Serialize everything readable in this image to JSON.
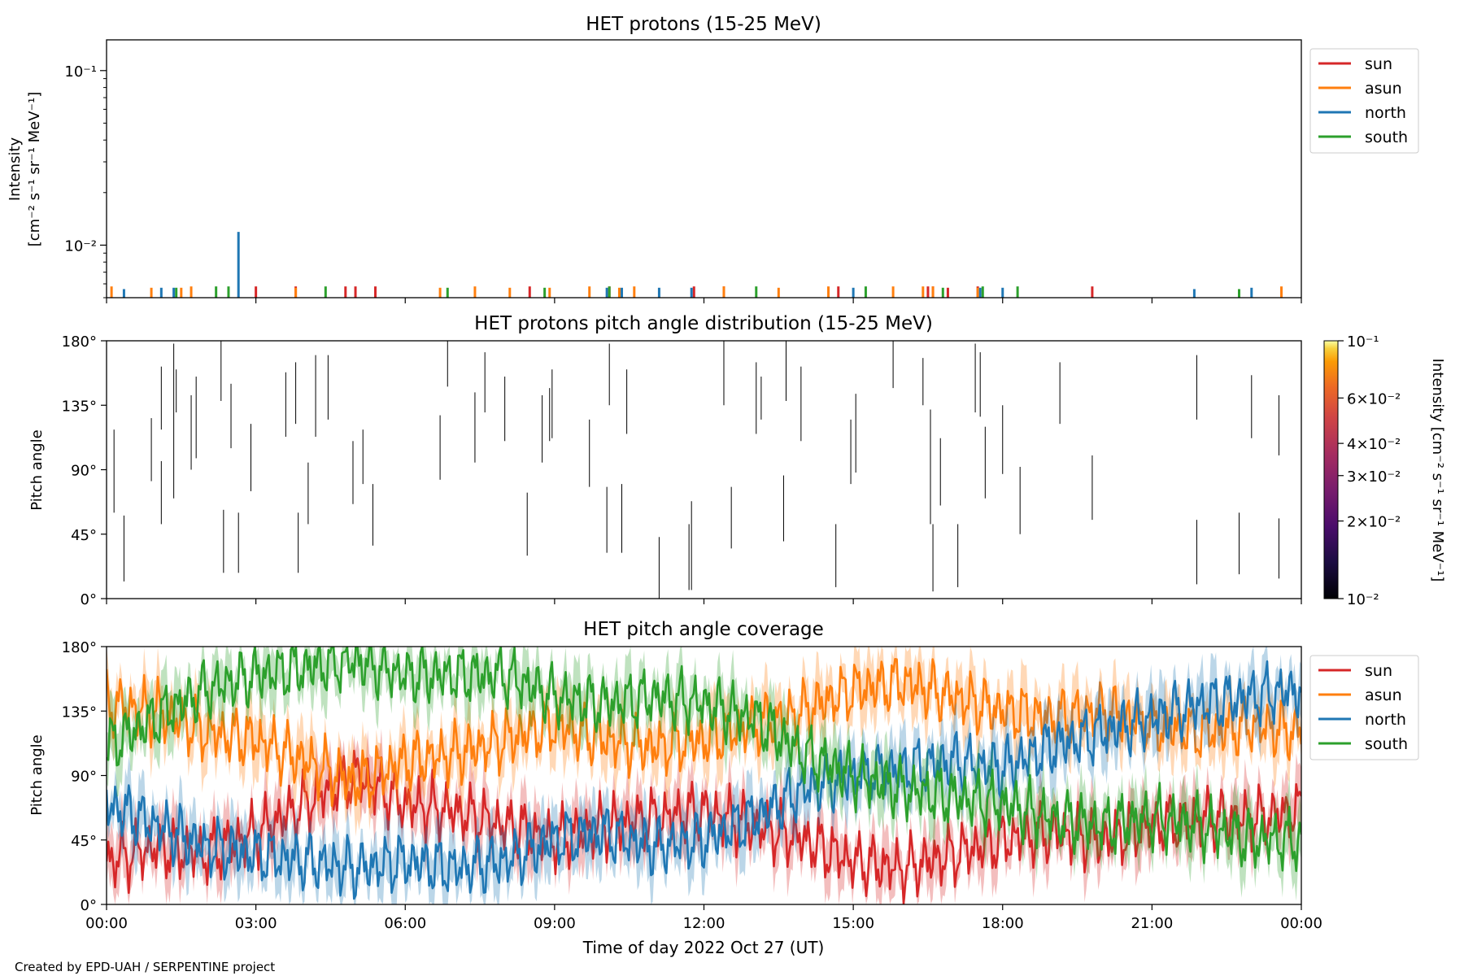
{
  "footer": "Created by EPD-UAH / SERPENTINE project",
  "colors": {
    "sun": "#d62728",
    "asun": "#ff7f0e",
    "north": "#1f77b4",
    "south": "#2ca02c"
  },
  "time_ticks": [
    "00:00",
    "03:00",
    "06:00",
    "09:00",
    "12:00",
    "15:00",
    "18:00",
    "21:00",
    "00:00"
  ],
  "xlabel": "Time of day 2022 Oct 27 (UT)",
  "chart_data": [
    {
      "type": "bar",
      "title": "HET protons (15-25 MeV)",
      "ylabel_line1": "Intensity",
      "ylabel_line2": "[cm⁻² s⁻¹ sr⁻¹ MeV⁻¹]",
      "yscale": "log",
      "ylim": [
        0.005,
        0.15
      ],
      "ytick_labels": [
        "10⁻¹",
        "10⁻²"
      ],
      "xlim_hours": [
        0,
        24
      ],
      "legend_position": "right-outside-top",
      "series": [
        {
          "name": "sun",
          "color_key": "sun",
          "t": [
            3.0,
            3.8,
            4.8,
            5.0,
            5.4,
            8.5,
            10.1,
            11.8,
            12.4,
            14.7,
            16.5,
            16.6,
            16.9,
            17.5,
            19.8
          ],
          "values": [
            0.0058,
            0.0058,
            0.0058,
            0.0058,
            0.0058,
            0.0058,
            0.0058,
            0.0058,
            0.0058,
            0.0058,
            0.0058,
            0.0058,
            0.0057,
            0.0058,
            0.0058
          ]
        },
        {
          "name": "asun",
          "color_key": "asun",
          "t": [
            0.1,
            0.9,
            1.5,
            1.7,
            3.8,
            6.7,
            7.4,
            8.1,
            8.9,
            9.7,
            10.3,
            10.6,
            12.4,
            13.5,
            14.5,
            15.8,
            16.4,
            16.6,
            17.5,
            23.6
          ],
          "values": [
            0.0058,
            0.0057,
            0.0057,
            0.0058,
            0.0057,
            0.0057,
            0.0058,
            0.0057,
            0.0057,
            0.0058,
            0.0057,
            0.0058,
            0.0058,
            0.0057,
            0.0058,
            0.0058,
            0.0058,
            0.0058,
            0.0057,
            0.0058
          ]
        },
        {
          "name": "north",
          "color_key": "north",
          "t": [
            0.35,
            1.1,
            1.35,
            2.65,
            10.05,
            10.35,
            11.1,
            11.75,
            15.0,
            17.55,
            18.0,
            21.85,
            23.0
          ],
          "values": [
            0.0056,
            0.0057,
            0.0057,
            0.0119,
            0.0057,
            0.0057,
            0.0057,
            0.0057,
            0.0057,
            0.0057,
            0.0057,
            0.0056,
            0.0057
          ]
        },
        {
          "name": "south",
          "color_key": "south",
          "t": [
            1.4,
            2.2,
            2.45,
            4.4,
            6.85,
            8.8,
            10.1,
            13.05,
            15.25,
            16.8,
            17.6,
            18.3,
            22.75
          ],
          "values": [
            0.0057,
            0.0058,
            0.0058,
            0.0058,
            0.0057,
            0.0057,
            0.0058,
            0.0058,
            0.0058,
            0.0057,
            0.0058,
            0.0058,
            0.0056
          ]
        }
      ]
    },
    {
      "type": "scatter",
      "title": "HET protons pitch angle distribution (15-25 MeV)",
      "ylabel": "Pitch angle",
      "ylim": [
        0,
        180
      ],
      "ytick_labels": [
        "0°",
        "45°",
        "90°",
        "135°",
        "180°"
      ],
      "ytick_values": [
        0,
        45,
        90,
        135,
        180
      ],
      "xlim_hours": [
        0,
        24
      ],
      "colorbar": {
        "label": "Intensity [cm⁻² s⁻¹ sr⁻¹ MeV⁻¹]",
        "scale": "log",
        "range": [
          0.01,
          0.1
        ],
        "tick_labels": [
          "10⁻¹",
          "6×10⁻²",
          "4×10⁻²",
          "3×10⁻²",
          "2×10⁻²",
          "10⁻²"
        ],
        "tick_values": [
          0.1,
          0.06,
          0.04,
          0.03,
          0.02,
          0.01
        ],
        "colormap": "inferno"
      },
      "segments": [
        [
          0.15,
          60,
          118
        ],
        [
          0.35,
          12,
          58
        ],
        [
          0.9,
          82,
          126
        ],
        [
          1.1,
          52,
          96
        ],
        [
          1.1,
          118,
          162
        ],
        [
          1.35,
          70,
          178
        ],
        [
          1.4,
          130,
          160
        ],
        [
          1.7,
          90,
          142
        ],
        [
          1.8,
          98,
          155
        ],
        [
          2.3,
          138,
          180
        ],
        [
          2.35,
          18,
          62
        ],
        [
          2.5,
          105,
          150
        ],
        [
          2.65,
          18,
          60
        ],
        [
          2.9,
          75,
          122
        ],
        [
          3.6,
          113,
          158
        ],
        [
          3.85,
          18,
          60
        ],
        [
          3.8,
          122,
          165
        ],
        [
          4.05,
          52,
          95
        ],
        [
          4.2,
          113,
          170
        ],
        [
          4.45,
          125,
          170
        ],
        [
          4.95,
          66,
          110
        ],
        [
          5.15,
          80,
          118
        ],
        [
          5.35,
          37,
          80
        ],
        [
          6.7,
          83,
          128
        ],
        [
          6.85,
          148,
          180
        ],
        [
          7.4,
          95,
          144
        ],
        [
          7.6,
          130,
          172
        ],
        [
          8.0,
          110,
          155
        ],
        [
          8.45,
          30,
          74
        ],
        [
          8.75,
          95,
          142
        ],
        [
          8.9,
          110,
          147
        ],
        [
          8.95,
          112,
          160
        ],
        [
          9.7,
          78,
          125
        ],
        [
          10.05,
          32,
          78
        ],
        [
          10.1,
          135,
          178
        ],
        [
          10.35,
          32,
          80
        ],
        [
          10.45,
          115,
          160
        ],
        [
          11.1,
          0,
          43
        ],
        [
          11.7,
          6,
          52
        ],
        [
          11.75,
          6,
          68
        ],
        [
          12.4,
          135,
          180
        ],
        [
          12.55,
          35,
          78
        ],
        [
          13.05,
          115,
          165
        ],
        [
          13.15,
          125,
          155
        ],
        [
          13.6,
          40,
          86
        ],
        [
          13.65,
          138,
          180
        ],
        [
          13.95,
          110,
          162
        ],
        [
          14.65,
          8,
          52
        ],
        [
          14.95,
          80,
          125
        ],
        [
          15.05,
          88,
          143
        ],
        [
          15.8,
          147,
          180
        ],
        [
          16.4,
          135,
          168
        ],
        [
          16.55,
          85,
          132
        ],
        [
          16.55,
          52,
          98
        ],
        [
          16.6,
          5,
          52
        ],
        [
          16.75,
          65,
          112
        ],
        [
          17.1,
          8,
          52
        ],
        [
          17.45,
          130,
          178
        ],
        [
          17.55,
          127,
          172
        ],
        [
          17.65,
          70,
          120
        ],
        [
          18.0,
          87,
          135
        ],
        [
          18.35,
          45,
          92
        ],
        [
          19.15,
          122,
          165
        ],
        [
          19.8,
          55,
          100
        ],
        [
          21.9,
          10,
          55
        ],
        [
          21.9,
          125,
          170
        ],
        [
          22.75,
          17,
          60
        ],
        [
          23.0,
          112,
          156
        ],
        [
          23.55,
          14,
          56
        ],
        [
          23.55,
          100,
          142
        ]
      ]
    },
    {
      "type": "area",
      "title": "HET pitch angle coverage",
      "ylabel": "Pitch angle",
      "ylim": [
        0,
        180
      ],
      "ytick_labels": [
        "0°",
        "45°",
        "90°",
        "135°",
        "180°"
      ],
      "ytick_values": [
        0,
        45,
        90,
        135,
        180
      ],
      "xlim_hours": [
        0,
        24
      ],
      "legend_position": "right-outside-top",
      "series": [
        {
          "name": "sun",
          "color_key": "sun",
          "t": [
            0,
            1,
            2,
            3,
            4,
            5,
            6,
            7,
            8,
            9,
            10,
            11,
            12,
            13,
            14,
            15,
            16,
            17,
            18,
            19,
            20,
            21,
            22,
            23,
            24
          ],
          "values": [
            30,
            40,
            35,
            50,
            70,
            90,
            70,
            65,
            55,
            45,
            55,
            60,
            65,
            55,
            45,
            30,
            25,
            35,
            45,
            50,
            45,
            55,
            60,
            60,
            65
          ]
        },
        {
          "name": "asun",
          "color_key": "asun",
          "t": [
            0,
            1,
            2,
            3,
            4,
            5,
            6,
            7,
            8,
            9,
            10,
            11,
            12,
            13,
            14,
            15,
            16,
            17,
            18,
            19,
            20,
            21,
            22,
            23,
            24
          ],
          "values": [
            140,
            135,
            120,
            115,
            100,
            85,
            100,
            105,
            115,
            125,
            115,
            110,
            115,
            125,
            135,
            150,
            155,
            145,
            135,
            130,
            135,
            125,
            120,
            125,
            120
          ]
        },
        {
          "name": "north",
          "color_key": "north",
          "t": [
            0,
            1,
            2,
            3,
            4,
            5,
            6,
            7,
            8,
            9,
            10,
            11,
            12,
            13,
            14,
            15,
            16,
            17,
            18,
            19,
            20,
            21,
            22,
            23,
            24
          ],
          "values": [
            70,
            55,
            40,
            35,
            30,
            25,
            30,
            25,
            30,
            45,
            50,
            40,
            45,
            60,
            80,
            90,
            95,
            100,
            95,
            110,
            120,
            130,
            140,
            145,
            150
          ]
        },
        {
          "name": "south",
          "color_key": "south",
          "t": [
            0,
            1,
            2,
            3,
            4,
            5,
            6,
            7,
            8,
            9,
            10,
            11,
            12,
            13,
            14,
            15,
            16,
            17,
            18,
            19,
            20,
            21,
            22,
            23,
            24
          ],
          "values": [
            110,
            130,
            150,
            160,
            165,
            170,
            160,
            160,
            160,
            145,
            140,
            145,
            140,
            130,
            105,
            90,
            80,
            75,
            70,
            60,
            55,
            60,
            55,
            45,
            45
          ]
        }
      ]
    }
  ]
}
